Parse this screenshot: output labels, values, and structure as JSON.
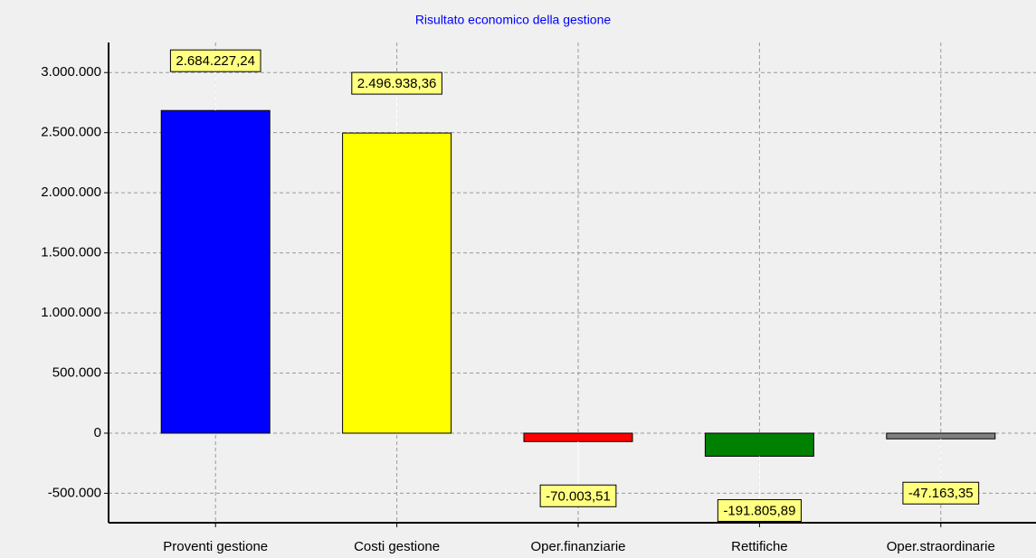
{
  "chart_data": {
    "type": "bar",
    "title": "Risultato economico della gestione",
    "categories": [
      "Proventi gestione",
      "Costi gestione",
      "Oper.finanziarie",
      "Rettifiche",
      "Oper.straordinarie"
    ],
    "values": [
      2684227.24,
      2496938.36,
      -70003.51,
      -191805.89,
      -47163.35
    ],
    "value_labels": [
      "2.684.227,24",
      "2.496.938,36",
      "-70.003,51",
      "-191.805,89",
      "-47.163,35"
    ],
    "colors": [
      "#0000ff",
      "#ffff00",
      "#ff0000",
      "#008000",
      "#808080"
    ],
    "ylim": [
      -745000,
      3250000
    ],
    "yticks": [
      {
        "value": -500000,
        "label": "-500.000"
      },
      0,
      {
        "value": 500000,
        "label": "500.000"
      },
      {
        "value": 1000000,
        "label": "1.000.000"
      },
      {
        "value": 1500000,
        "label": "1.500.000"
      },
      {
        "value": 2000000,
        "label": "2.000.000"
      },
      {
        "value": 2500000,
        "label": "2.500.000"
      },
      {
        "value": 3000000,
        "label": "3.000.000"
      }
    ],
    "grid": true
  }
}
